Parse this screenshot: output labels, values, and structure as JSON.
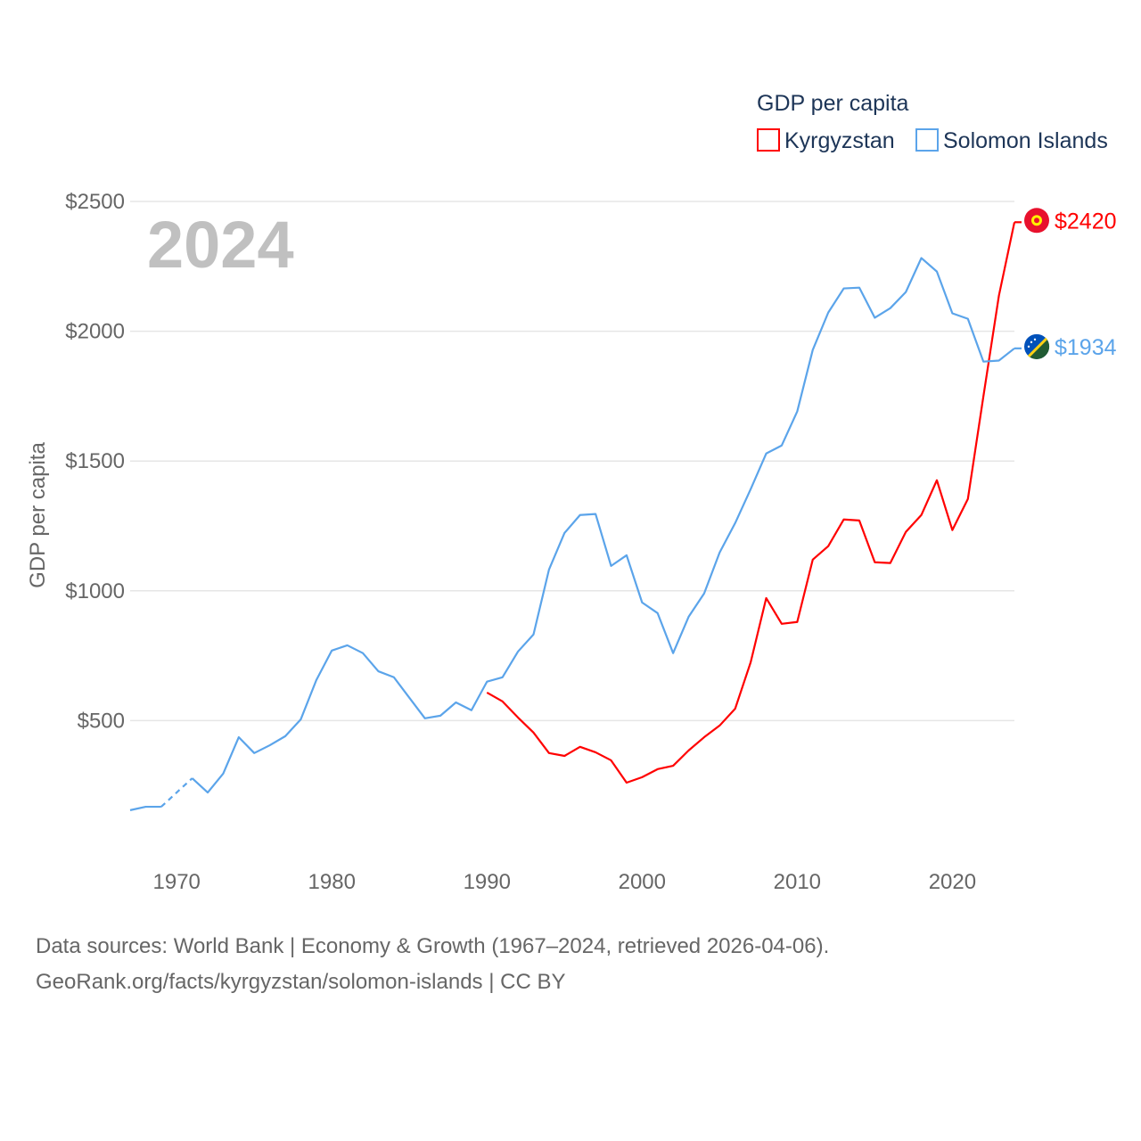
{
  "chart_data": {
    "type": "line",
    "title": "GDP per capita",
    "year_label": "2024",
    "ylabel": "GDP per capita",
    "xlabel": "",
    "ylim": [
      0,
      2500
    ],
    "xlim": [
      1967,
      2024
    ],
    "yticks": [
      500,
      1000,
      1500,
      2000,
      2500
    ],
    "ytick_labels": [
      "$500",
      "$1000",
      "$1500",
      "$2000",
      "$2500"
    ],
    "xticks": [
      1970,
      1980,
      1990,
      2000,
      2010,
      2020
    ],
    "xtick_labels": [
      "1970",
      "1980",
      "1990",
      "2000",
      "2010",
      "2020"
    ],
    "grid": true,
    "legend_placement": "top-right",
    "series": [
      {
        "name": "Kyrgyzstan",
        "color": "#ff0000",
        "end_label": "$2420",
        "x": [
          1990,
          1991,
          1992,
          1993,
          1994,
          1995,
          1996,
          1997,
          1998,
          1999,
          2000,
          2001,
          2002,
          2003,
          2004,
          2005,
          2006,
          2007,
          2008,
          2009,
          2010,
          2011,
          2012,
          2013,
          2014,
          2015,
          2016,
          2017,
          2018,
          2019,
          2020,
          2021,
          2022,
          2023,
          2024
        ],
        "values": [
          608,
          574,
          512,
          454,
          375,
          364,
          399,
          378,
          347,
          261,
          282,
          313,
          326,
          385,
          436,
          481,
          546,
          725,
          972,
          873,
          880,
          1120,
          1172,
          1275,
          1271,
          1110,
          1107,
          1227,
          1292,
          1426,
          1234,
          1354,
          1749,
          2137,
          2420
        ]
      },
      {
        "name": "Solomon Islands",
        "color": "#5ba4ea",
        "end_label": "$1934",
        "x": [
          1967,
          1968,
          1969,
          1970,
          1971,
          1972,
          1973,
          1974,
          1975,
          1976,
          1977,
          1978,
          1979,
          1980,
          1981,
          1982,
          1983,
          1984,
          1985,
          1986,
          1987,
          1988,
          1989,
          1990,
          1991,
          1992,
          1993,
          1994,
          1995,
          1996,
          1997,
          1998,
          1999,
          2000,
          2001,
          2002,
          2003,
          2004,
          2005,
          2006,
          2007,
          2008,
          2009,
          2010,
          2011,
          2012,
          2013,
          2014,
          2015,
          2016,
          2017,
          2018,
          2019,
          2020,
          2021,
          2022,
          2023,
          2024
        ],
        "values": [
          155,
          168,
          168,
          null,
          278,
          223,
          296,
          436,
          375,
          405,
          440,
          505,
          656,
          770,
          790,
          760,
          690,
          667,
          588,
          509,
          519,
          570,
          540,
          650,
          667,
          766,
          832,
          1082,
          1223,
          1292,
          1296,
          1096,
          1137,
          955,
          914,
          760,
          900,
          990,
          1148,
          1261,
          1392,
          1529,
          1560,
          1691,
          1928,
          2072,
          2165,
          2168,
          2052,
          2089,
          2151,
          2282,
          2230,
          2069,
          2048,
          1883,
          1887,
          1934
        ]
      }
    ]
  },
  "footer": {
    "line1": "Data sources: World Bank | Economy & Growth (1967–2024, retrieved 2026-04-06).",
    "line2": "GeoRank.org/facts/kyrgyzstan/solomon-islands | CC BY"
  }
}
